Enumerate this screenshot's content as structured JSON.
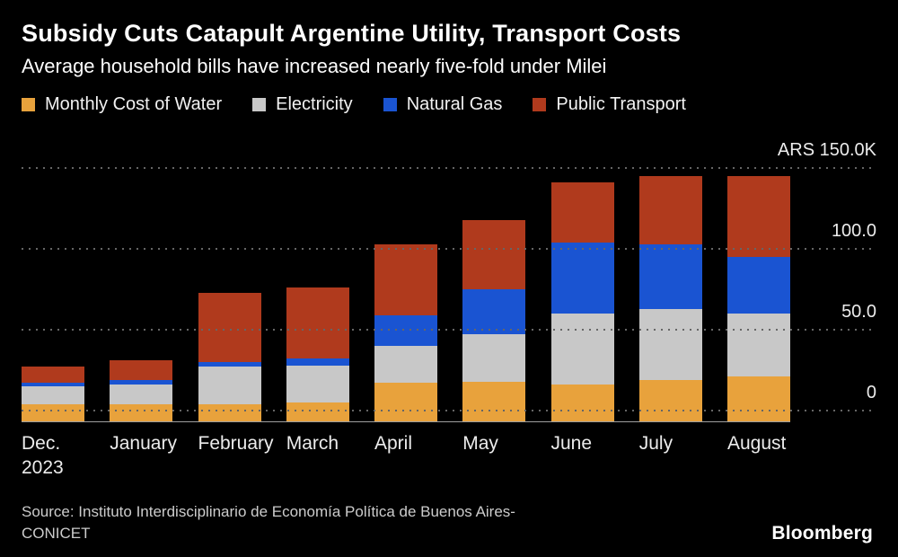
{
  "chart_data": {
    "type": "bar",
    "stacked": true,
    "title": "Subsidy Cuts Catapult Argentine Utility, Transport Costs",
    "subtitle": "Average household bills have increased nearly five-fold under Milei",
    "unit": "ARS (thousands)",
    "legend_position": "top",
    "grid": "horizontal-dotted",
    "background_color": "#000000",
    "categories": [
      "Dec.\n2023",
      "January",
      "February",
      "March",
      "April",
      "May",
      "June",
      "July",
      "August"
    ],
    "series": [
      {
        "name": "Monthly Cost of Water",
        "color": "#E8A23C",
        "values": [
          4,
          4,
          4,
          5,
          17,
          18,
          16,
          19,
          21
        ]
      },
      {
        "name": "Electricity",
        "color": "#C8C8C8",
        "values": [
          11,
          12,
          23,
          23,
          23,
          29,
          44,
          44,
          39
        ]
      },
      {
        "name": "Natural Gas",
        "color": "#1A54D2",
        "values": [
          2,
          3,
          3,
          4,
          19,
          28,
          44,
          40,
          35
        ]
      },
      {
        "name": "Public Transport",
        "color": "#B03A1D",
        "values": [
          10,
          12,
          43,
          44,
          44,
          43,
          37,
          42,
          50
        ]
      }
    ],
    "ylim": [
      0,
      150
    ],
    "yticks": [
      {
        "value": 0,
        "label": "0"
      },
      {
        "value": 50,
        "label": "50.0"
      },
      {
        "value": 100,
        "label": "100.0"
      },
      {
        "value": 150,
        "label": "ARS  150.0K"
      }
    ]
  },
  "footer": {
    "source": "Source: Instituto Interdisciplinario de Economía Política de Buenos Aires-\nCONICET",
    "logo": "Bloomberg"
  }
}
